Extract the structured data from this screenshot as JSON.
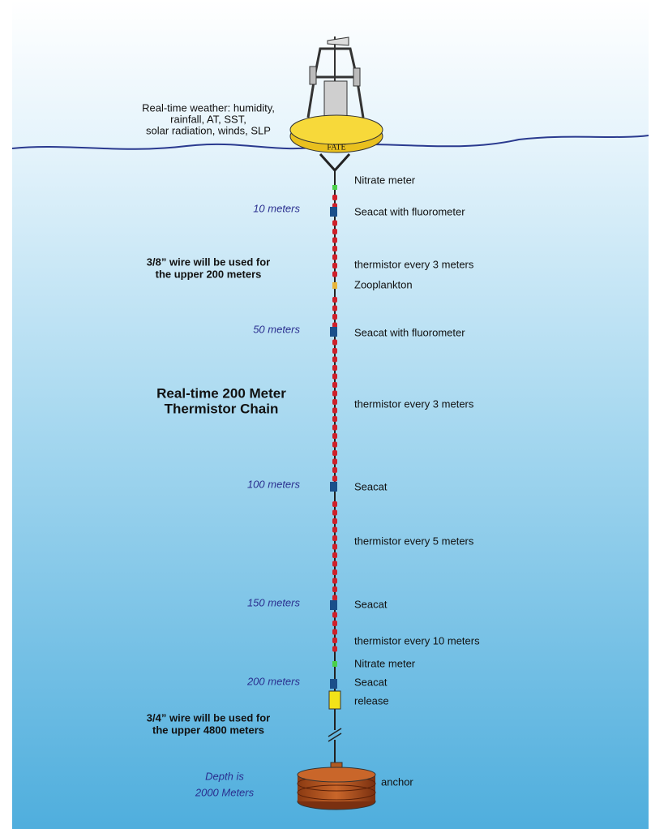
{
  "weather_note": {
    "lines": [
      "Real-time weather: humidity,",
      "rainfall, AT, SST,",
      "solar radiation, winds, SLP"
    ]
  },
  "buoy_label": "FATE",
  "depth_labels": [
    "10 meters",
    "50 meters",
    "100 meters",
    "150 meters",
    "200 meters"
  ],
  "instrument_labels": [
    "Nitrate meter",
    "Seacat with fluorometer",
    "thermistor every 3 meters",
    "Zooplankton",
    "Seacat with fluorometer",
    "thermistor every 3 meters",
    "Seacat",
    "thermistor every 5 meters",
    "Seacat",
    "thermistor every 10 meters",
    "Nitrate meter",
    "Seacat",
    "release",
    "anchor"
  ],
  "upper_wire_note": {
    "lines": [
      "3/8” wire will be used for",
      "the upper 200 meters"
    ]
  },
  "title": {
    "lines": [
      "Real-time 200 Meter",
      "Thermistor Chain"
    ]
  },
  "lower_wire_note": {
    "lines": [
      "3/4” wire will be used for",
      "the upper 4800 meters"
    ]
  },
  "depth_note": {
    "lines": [
      "Depth is",
      "2000 Meters"
    ]
  }
}
